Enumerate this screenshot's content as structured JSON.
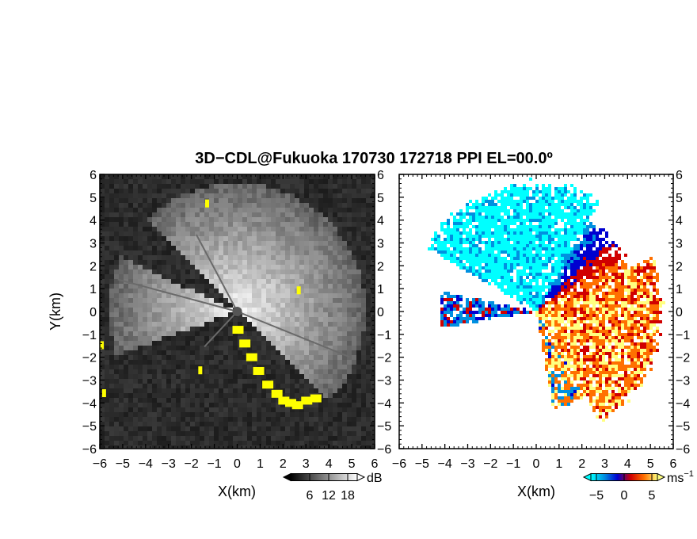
{
  "title": "3D−CDL@Fukuoka 170730 172718 PPI EL=00.0º",
  "chart_data": [
    {
      "type": "heatmap",
      "panel": "reflectivity",
      "xlabel": "X(km)",
      "ylabel": "Y(km)",
      "xlim": [
        -6,
        6
      ],
      "ylim": [
        -6,
        6
      ],
      "ticks": [
        "−6",
        "−5",
        "−4",
        "−3",
        "−2",
        "−1",
        "0",
        "1",
        "2",
        "3",
        "4",
        "5",
        "6"
      ],
      "colorbar": {
        "unit": "dB",
        "tick_labels": [
          "6",
          "12",
          "18"
        ],
        "range": [
          0,
          21
        ],
        "colors": [
          "#000000",
          "#ffffff"
        ]
      },
      "flag_color": "#ffff00",
      "sector_center_deg": 50,
      "radius_km": 5.6
    },
    {
      "type": "heatmap",
      "panel": "doppler-velocity",
      "xlabel": "X(km)",
      "xlim": [
        -6,
        6
      ],
      "ylim": [
        -6,
        6
      ],
      "ticks": [
        "−6",
        "−5",
        "−4",
        "−3",
        "−2",
        "−1",
        "0",
        "1",
        "2",
        "3",
        "4",
        "5",
        "6"
      ],
      "colorbar": {
        "unit": "ms",
        "unit_exp": "−1",
        "tick_labels": [
          "−5",
          "0",
          "5"
        ],
        "range": [
          -6,
          6
        ],
        "colors": [
          "#00ffff",
          "#0090e0",
          "#0000d0",
          "#d00000",
          "#ff7000",
          "#ffff80"
        ]
      }
    }
  ]
}
